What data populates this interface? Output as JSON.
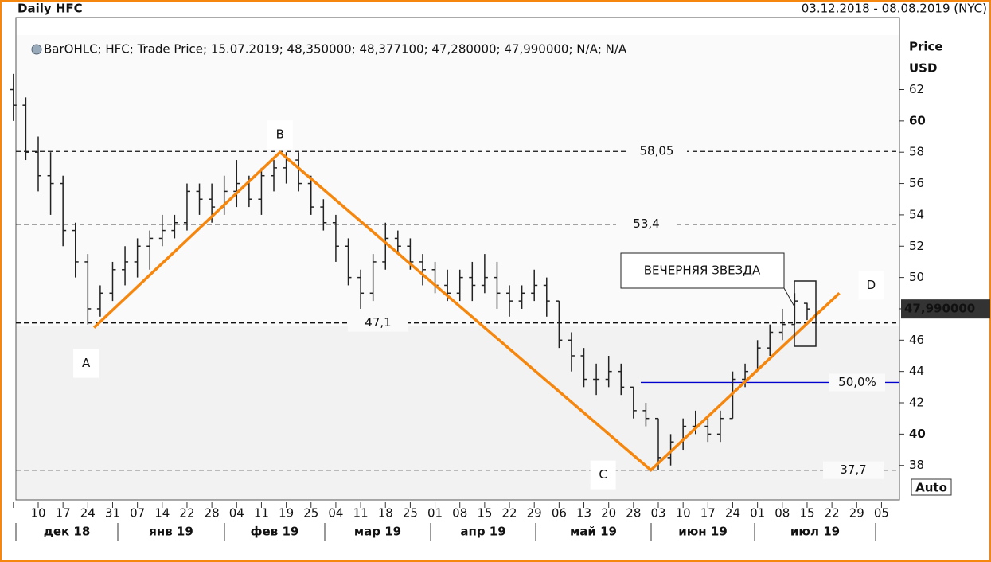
{
  "chart_data": {
    "type": "ohlc",
    "title": "Daily HFC",
    "date_range": "03.12.2018 - 08.08.2019 (NYC)",
    "legend": "BarOHLC; HFC; Trade Price; 15.07.2019; 48,350000; 48,377100; 47,280000; 47,990000; N/A; N/A",
    "y_axis_label": [
      "Price",
      "USD"
    ],
    "categories": [
      null,
      null,
      "10",
      null,
      "17",
      null,
      "24",
      null,
      "31",
      null,
      "07",
      null,
      "14",
      null,
      "22",
      null,
      "28",
      null,
      "04",
      null,
      "11",
      null,
      "19",
      null,
      "25",
      null,
      "04",
      null,
      "11",
      null,
      "18",
      null,
      "25",
      null,
      "01",
      null,
      "08",
      null,
      "15",
      null,
      "22",
      null,
      "29",
      null,
      "06",
      null,
      "13",
      null,
      "20",
      null,
      "28",
      null,
      "03",
      null,
      "10",
      null,
      "17",
      null,
      "24",
      null,
      "01",
      null,
      "08",
      null,
      "15",
      null,
      "22",
      null,
      "29",
      null,
      "05",
      null
    ],
    "months": [
      "дек 18",
      "янв 19",
      "фев 19",
      "мар 19",
      "апр 19",
      "май 19",
      "июн 19",
      "июл 19"
    ],
    "open": [
      62,
      61,
      58,
      56.5,
      56,
      53,
      51,
      48,
      49,
      50.5,
      51,
      52,
      52.5,
      53,
      53.5,
      55.5,
      55,
      54.5,
      55.5,
      56,
      55,
      56.5,
      57,
      57.5,
      56,
      54.5,
      53.5,
      52,
      50,
      49,
      51,
      52.5,
      52,
      51,
      50.5,
      49.5,
      49,
      50,
      49.5,
      50,
      49,
      48.5,
      49,
      49.5,
      48.5,
      46,
      45,
      43.5,
      43.5,
      44,
      43,
      41.5,
      41,
      38.5,
      39.5,
      40.5,
      40.5,
      40,
      41,
      43.5,
      44,
      45.5,
      46.5,
      47,
      48.35,
      null,
      null,
      null,
      null,
      null,
      null,
      null
    ],
    "high": [
      63,
      61.5,
      59,
      58,
      56.5,
      53.5,
      51.5,
      49.5,
      51,
      52,
      52.5,
      53,
      54,
      54,
      56,
      56,
      56,
      56.5,
      57.5,
      56.5,
      57,
      57.5,
      58,
      58,
      56.5,
      55,
      54,
      52.5,
      50.5,
      51.5,
      53.5,
      53,
      52.5,
      51.5,
      51,
      50.5,
      50.5,
      51,
      51.5,
      51,
      49.5,
      49.5,
      50.5,
      50,
      48.5,
      46.5,
      45.5,
      44.5,
      45,
      44.5,
      43,
      42,
      41,
      40,
      41,
      41.5,
      41,
      41.5,
      44,
      44.5,
      46,
      47,
      48,
      49,
      48.3771,
      null,
      null,
      null,
      null,
      null,
      null,
      null
    ],
    "low": [
      60,
      57.5,
      55.5,
      54,
      52,
      50,
      47,
      47.5,
      48.5,
      49.5,
      50,
      50.5,
      52,
      52.5,
      53,
      54,
      53.5,
      54,
      54.5,
      54.5,
      54,
      55.5,
      56,
      55.5,
      54,
      53,
      51,
      49.5,
      48,
      48.5,
      50.5,
      51.5,
      50.5,
      49.5,
      49,
      48.5,
      48.5,
      48.5,
      49,
      48,
      47.5,
      48,
      48.5,
      47.5,
      45.5,
      44,
      43,
      42.5,
      43,
      42.5,
      41,
      40.5,
      37.7,
      38,
      39,
      40,
      39.5,
      39.5,
      41,
      43,
      44,
      45,
      46,
      47,
      47.28,
      null,
      null,
      null,
      null,
      null,
      null,
      null
    ],
    "close": [
      61,
      58,
      56.5,
      56,
      53,
      51,
      48,
      49,
      50.5,
      51,
      52,
      52.5,
      53,
      53.5,
      55.5,
      55,
      54.5,
      55.5,
      56,
      55,
      56.5,
      57,
      57.5,
      56,
      54.5,
      53.5,
      52,
      50,
      49,
      51,
      52.5,
      52,
      51,
      50.5,
      49.5,
      49,
      50,
      49.5,
      50,
      49,
      48.5,
      49,
      49.5,
      48.5,
      46,
      45,
      43.5,
      43.5,
      44,
      43,
      41.5,
      41,
      38.5,
      39.5,
      40.5,
      40.5,
      40,
      41,
      43.5,
      44,
      45.5,
      46.5,
      47,
      48.5,
      47.99,
      null,
      null,
      null,
      null,
      null,
      null,
      null
    ],
    "last_label": "47,990000",
    "color": "#222222",
    "ylim": [
      35.8,
      66.6
    ],
    "yticks": [
      38,
      40,
      42,
      44,
      46,
      48,
      50,
      52,
      54,
      56,
      58,
      60,
      62
    ],
    "levels": [
      {
        "value": 58.05,
        "label": "58,05"
      },
      {
        "value": 53.4,
        "label": "53,4"
      },
      {
        "value": 47.1,
        "label": "47,1"
      },
      {
        "value": 37.7,
        "label": "37,7"
      }
    ],
    "fib": {
      "value": 43.3,
      "label": "50,0%",
      "color": "#0000cc"
    },
    "pattern": {
      "color": "#f5870f",
      "points": [
        {
          "label": "A",
          "x": 6.5,
          "y": 46.8
        },
        {
          "label": "B",
          "x": 21.5,
          "y": 58
        },
        {
          "label": "C",
          "x": 51.4,
          "y": 37.7
        },
        {
          "label": "D",
          "x": 66.6,
          "y": 49
        }
      ]
    },
    "annotation": "ВЕЧЕРНЯЯ ЗВЕЗДА",
    "button": "Auto"
  }
}
